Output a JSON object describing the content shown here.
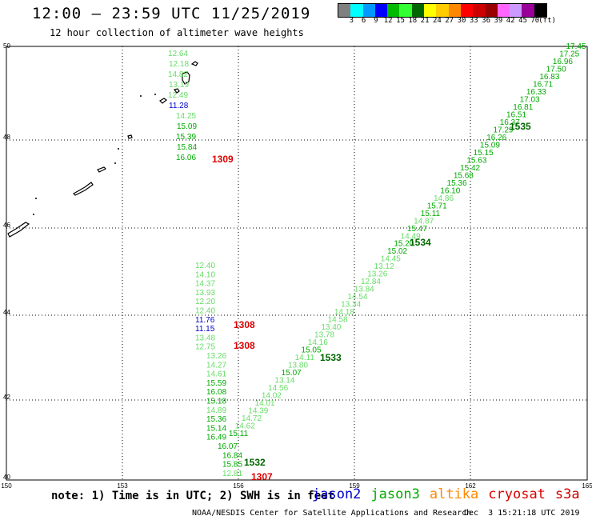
{
  "header": {
    "title": "12:00 – 23:59 UTC 11/25/2019",
    "subtitle": "12 hour collection of altimeter wave heights"
  },
  "legend": {
    "colors": [
      "#808080",
      "#00ffff",
      "#0099ff",
      "#0000ff",
      "#00bb00",
      "#33ff33",
      "#006600",
      "#ffff00",
      "#ffcc00",
      "#ff8800",
      "#ff0000",
      "#cc0000",
      "#990000",
      "#ff66ff",
      "#cc99ff",
      "#990099",
      "#000000"
    ],
    "labels": [
      "3",
      "6",
      "9",
      "12",
      "15",
      "18",
      "21",
      "24",
      "27",
      "30",
      "33",
      "36",
      "39",
      "42",
      "45",
      "70",
      "(ft)"
    ]
  },
  "axes": {
    "lat_labels": [
      "50",
      "48",
      "46",
      "44",
      "42",
      "40"
    ],
    "lon_labels": [
      "150",
      "153",
      "156",
      "159",
      "162",
      "165"
    ]
  },
  "satellites": [
    {
      "name": "jason2",
      "color": "#0000cc"
    },
    {
      "name": "jason3",
      "color": "#00aa00"
    },
    {
      "name": "altika",
      "color": "#ff8800"
    },
    {
      "name": "cryosat",
      "color": "#dd0000"
    },
    {
      "name": "s3a",
      "color": "#cc0000"
    }
  ],
  "track_labels": [
    {
      "text": "1535",
      "color": "#006600"
    },
    {
      "text": "1534",
      "color": "#006600"
    },
    {
      "text": "1533",
      "color": "#006600"
    },
    {
      "text": "1532",
      "color": "#006600"
    },
    {
      "text": "1309",
      "color": "#dd0000"
    },
    {
      "text": "1308",
      "color": "#dd0000"
    },
    {
      "text": "1308",
      "color": "#dd0000"
    },
    {
      "text": "1307",
      "color": "#dd0000"
    }
  ],
  "observations": {
    "track_1309_north": [
      {
        "v": "12.64",
        "c": "#66dd66"
      },
      {
        "v": "12.18",
        "c": "#66dd66"
      },
      {
        "v": "14.82",
        "c": "#66dd66"
      },
      {
        "v": "13.19",
        "c": "#66dd66"
      },
      {
        "v": "12.49",
        "c": "#66dd66"
      },
      {
        "v": "11.28",
        "c": "#0000cc"
      },
      {
        "v": "14.25",
        "c": "#66dd66"
      },
      {
        "v": "15.09",
        "c": "#00aa00"
      },
      {
        "v": "15.39",
        "c": "#00aa00"
      },
      {
        "v": "15.84",
        "c": "#00aa00"
      },
      {
        "v": "16.06",
        "c": "#00aa00"
      }
    ],
    "track_1308_south": [
      {
        "v": "12.40",
        "c": "#66dd66"
      },
      {
        "v": "14.10",
        "c": "#66dd66"
      },
      {
        "v": "14.37",
        "c": "#66dd66"
      },
      {
        "v": "13.93",
        "c": "#66dd66"
      },
      {
        "v": "12.20",
        "c": "#66dd66"
      },
      {
        "v": "12.40",
        "c": "#66dd66"
      },
      {
        "v": "11.76",
        "c": "#0000cc"
      },
      {
        "v": "11.15",
        "c": "#0000cc"
      },
      {
        "v": "13.48",
        "c": "#66dd66"
      },
      {
        "v": "12.75",
        "c": "#66dd66"
      },
      {
        "v": "13.26",
        "c": "#66dd66"
      },
      {
        "v": "14.27",
        "c": "#66dd66"
      },
      {
        "v": "14.61",
        "c": "#66dd66"
      },
      {
        "v": "15.59",
        "c": "#00aa00"
      },
      {
        "v": "16.08",
        "c": "#00aa00"
      },
      {
        "v": "15.18",
        "c": "#00aa00"
      },
      {
        "v": "14.89",
        "c": "#66dd66"
      },
      {
        "v": "15.36",
        "c": "#00aa00"
      },
      {
        "v": "15.14",
        "c": "#00aa00"
      },
      {
        "v": "16.49",
        "c": "#00aa00"
      },
      {
        "v": "16.07",
        "c": "#00aa00"
      },
      {
        "v": "16.84",
        "c": "#00aa00"
      },
      {
        "v": "15.85",
        "c": "#00aa00"
      },
      {
        "v": "12.81",
        "c": "#66dd66"
      }
    ],
    "track_1532_1535": [
      {
        "v": "15.11",
        "c": "#00aa00"
      },
      {
        "v": "14.62",
        "c": "#66dd66"
      },
      {
        "v": "14.72",
        "c": "#66dd66"
      },
      {
        "v": "14.39",
        "c": "#66dd66"
      },
      {
        "v": "14.01",
        "c": "#66dd66"
      },
      {
        "v": "14.02",
        "c": "#66dd66"
      },
      {
        "v": "14.56",
        "c": "#66dd66"
      },
      {
        "v": "13.14",
        "c": "#66dd66"
      },
      {
        "v": "15.07",
        "c": "#00aa00"
      },
      {
        "v": "13.80",
        "c": "#66dd66"
      },
      {
        "v": "14.11",
        "c": "#66dd66"
      },
      {
        "v": "15.05",
        "c": "#00aa00"
      },
      {
        "v": "14.16",
        "c": "#66dd66"
      },
      {
        "v": "13.78",
        "c": "#66dd66"
      },
      {
        "v": "13.40",
        "c": "#66dd66"
      },
      {
        "v": "14.58",
        "c": "#66dd66"
      },
      {
        "v": "14.18",
        "c": "#66dd66"
      },
      {
        "v": "13.34",
        "c": "#66dd66"
      },
      {
        "v": "14.54",
        "c": "#66dd66"
      },
      {
        "v": "13.84",
        "c": "#66dd66"
      },
      {
        "v": "12.84",
        "c": "#66dd66"
      },
      {
        "v": "13.26",
        "c": "#66dd66"
      },
      {
        "v": "13.12",
        "c": "#66dd66"
      },
      {
        "v": "14.45",
        "c": "#66dd66"
      },
      {
        "v": "15.02",
        "c": "#00aa00"
      },
      {
        "v": "15.20",
        "c": "#00aa00"
      },
      {
        "v": "14.49",
        "c": "#66dd66"
      },
      {
        "v": "15.47",
        "c": "#00aa00"
      },
      {
        "v": "14.87",
        "c": "#66dd66"
      },
      {
        "v": "15.11",
        "c": "#00aa00"
      },
      {
        "v": "15.71",
        "c": "#00aa00"
      },
      {
        "v": "14.86",
        "c": "#66dd66"
      },
      {
        "v": "16.10",
        "c": "#00aa00"
      },
      {
        "v": "15.36",
        "c": "#00aa00"
      },
      {
        "v": "15.68",
        "c": "#00aa00"
      },
      {
        "v": "15.42",
        "c": "#00aa00"
      },
      {
        "v": "15.63",
        "c": "#00aa00"
      },
      {
        "v": "15.15",
        "c": "#00aa00"
      },
      {
        "v": "15.09",
        "c": "#00aa00"
      },
      {
        "v": "16.26",
        "c": "#00aa00"
      },
      {
        "v": "17.29",
        "c": "#00aa00"
      },
      {
        "v": "16.37",
        "c": "#00aa00"
      },
      {
        "v": "16.51",
        "c": "#00aa00"
      },
      {
        "v": "16.81",
        "c": "#00aa00"
      },
      {
        "v": "17.03",
        "c": "#00aa00"
      },
      {
        "v": "16.33",
        "c": "#00aa00"
      },
      {
        "v": "16.71",
        "c": "#00aa00"
      },
      {
        "v": "16.83",
        "c": "#00aa00"
      },
      {
        "v": "17.50",
        "c": "#00aa00"
      },
      {
        "v": "16.96",
        "c": "#00aa00"
      },
      {
        "v": "17.25",
        "c": "#00aa00"
      },
      {
        "v": "17.45",
        "c": "#00aa00"
      }
    ]
  },
  "footer": {
    "note": "note: 1) Time is in UTC; 2) SWH is in feet",
    "credit": "NOAA/NESDIS Center for Satellite Applications and Research",
    "timestamp": "Dec  3 15:21:18 UTC 2019"
  }
}
